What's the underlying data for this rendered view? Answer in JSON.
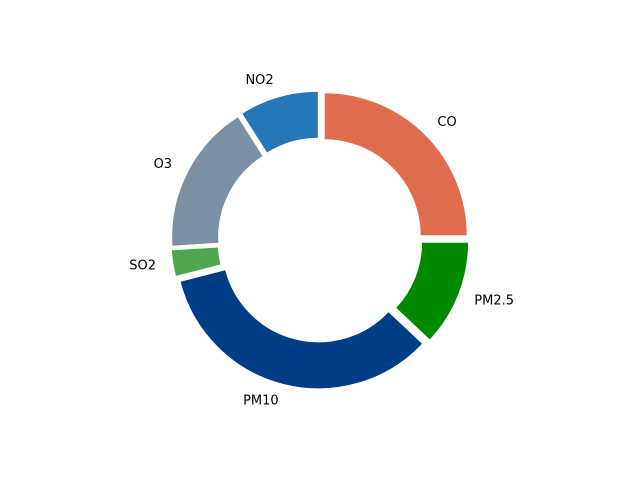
{
  "chart_data": {
    "type": "pie",
    "style": "donut",
    "slices_exploded": true,
    "start_angle_deg": 90,
    "direction": "clockwise",
    "title": "",
    "legend": "none",
    "slices": [
      {
        "label": "CO",
        "value": 25,
        "color": "#E06C4E"
      },
      {
        "label": "PM2.5",
        "value": 12,
        "color": "#008A00"
      },
      {
        "label": "PM10",
        "value": 34,
        "color": "#003D85"
      },
      {
        "label": "SO2",
        "value": 3,
        "color": "#4EA64E"
      },
      {
        "label": "O3",
        "value": 17,
        "color": "#7B90A3"
      },
      {
        "label": "NO2",
        "value": 9,
        "color": "#2677B8"
      }
    ]
  }
}
